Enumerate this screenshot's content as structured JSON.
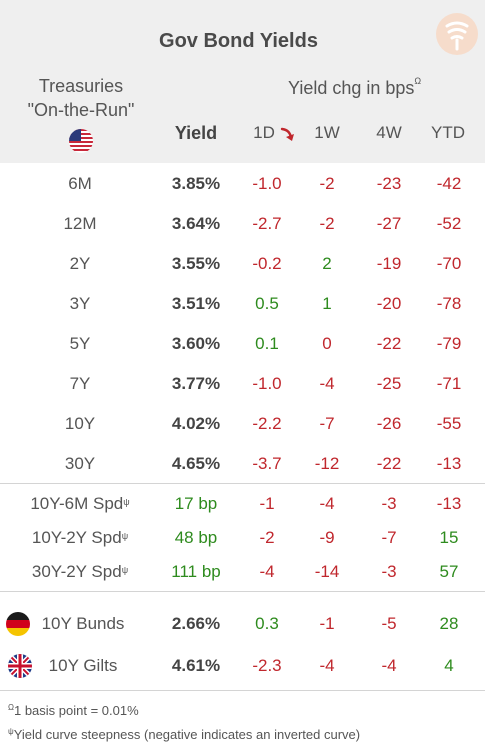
{
  "title": "Gov Bond Yields",
  "treasuries_label_line1": "Treasuries",
  "treasuries_label_line2": "\"On-the-Run\"",
  "yield_change_header": "Yield chg in bps",
  "yield_change_sup": "Ω",
  "columns": {
    "yield": "Yield",
    "d1": "1D",
    "w1": "1W",
    "w4": "4W",
    "ytd": "YTD"
  },
  "sort_indicator": "arrow-down-right-icon",
  "treasuries": [
    {
      "label": "6M",
      "yield": "3.85%",
      "d1": "-1.0",
      "w1": "-2",
      "w4": "-23",
      "ytd": "-42"
    },
    {
      "label": "12M",
      "yield": "3.64%",
      "d1": "-2.7",
      "w1": "-2",
      "w4": "-27",
      "ytd": "-52"
    },
    {
      "label": "2Y",
      "yield": "3.55%",
      "d1": "-0.2",
      "w1": "2",
      "w4": "-19",
      "ytd": "-70"
    },
    {
      "label": "3Y",
      "yield": "3.51%",
      "d1": "0.5",
      "w1": "1",
      "w4": "-20",
      "ytd": "-78"
    },
    {
      "label": "5Y",
      "yield": "3.60%",
      "d1": "0.1",
      "w1": "0",
      "w4": "-22",
      "ytd": "-79"
    },
    {
      "label": "7Y",
      "yield": "3.77%",
      "d1": "-1.0",
      "w1": "-4",
      "w4": "-25",
      "ytd": "-71"
    },
    {
      "label": "10Y",
      "yield": "4.02%",
      "d1": "-2.2",
      "w1": "-7",
      "w4": "-26",
      "ytd": "-55"
    },
    {
      "label": "30Y",
      "yield": "4.65%",
      "d1": "-3.7",
      "w1": "-12",
      "w4": "-22",
      "ytd": "-13"
    }
  ],
  "spreads": [
    {
      "label": "10Y-6M Spd",
      "sup": "ψ",
      "yield": "17 bp",
      "d1": "-1",
      "w1": "-4",
      "w4": "-3",
      "ytd": "-13"
    },
    {
      "label": "10Y-2Y Spd",
      "sup": "ψ",
      "yield": "48 bp",
      "d1": "-2",
      "w1": "-9",
      "w4": "-7",
      "ytd": "15"
    },
    {
      "label": "30Y-2Y Spd",
      "sup": "ψ",
      "yield": "111 bp",
      "d1": "-4",
      "w1": "-14",
      "w4": "-3",
      "ytd": "57"
    }
  ],
  "international": [
    {
      "label": "10Y Bunds",
      "flag": "germany-flag-icon",
      "yield": "2.66%",
      "d1": "0.3",
      "w1": "-1",
      "w4": "-5",
      "ytd": "28"
    },
    {
      "label": "10Y Gilts",
      "flag": "uk-flag-icon",
      "yield": "4.61%",
      "d1": "-2.3",
      "w1": "-4",
      "w4": "-4",
      "ytd": "4"
    }
  ],
  "footnotes": [
    {
      "sup": "Ω",
      "text": "1 basis point = 0.01%"
    },
    {
      "sup": "ψ",
      "text": "Yield curve steepness (negative indicates an inverted curve)"
    }
  ],
  "colors": {
    "positive": "#2e8b1e",
    "negative": "#c0272d",
    "header_bg": "#efefef"
  }
}
